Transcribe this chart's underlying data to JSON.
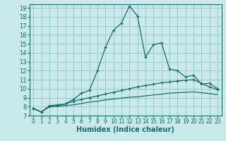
{
  "xlabel": "Humidex (Indice chaleur)",
  "background_color": "#c8eaea",
  "grid_color": "#8bbcbc",
  "line_color": "#1a6b6b",
  "xlim": [
    -0.5,
    23.5
  ],
  "ylim": [
    7,
    19.4
  ],
  "xticks": [
    0,
    1,
    2,
    3,
    4,
    5,
    6,
    7,
    8,
    9,
    10,
    11,
    12,
    13,
    14,
    15,
    16,
    17,
    18,
    19,
    20,
    21,
    22,
    23
  ],
  "yticks": [
    7,
    8,
    9,
    10,
    11,
    12,
    13,
    14,
    15,
    16,
    17,
    18,
    19
  ],
  "line1_x": [
    0,
    1,
    2,
    3,
    4,
    5,
    6,
    7,
    8,
    9,
    10,
    11,
    12,
    13,
    14,
    15,
    16,
    17,
    18,
    19,
    20,
    21,
    22,
    23
  ],
  "line1_y": [
    7.8,
    7.4,
    8.1,
    8.2,
    8.3,
    8.8,
    9.5,
    9.8,
    12.0,
    14.6,
    16.5,
    17.3,
    19.2,
    18.1,
    13.5,
    14.9,
    15.1,
    12.2,
    12.0,
    11.3,
    11.5,
    10.5,
    10.6,
    10.0
  ],
  "line2_x": [
    0,
    1,
    2,
    3,
    4,
    5,
    6,
    7,
    8,
    9,
    10,
    11,
    12,
    13,
    14,
    15,
    16,
    17,
    18,
    19,
    20,
    21,
    22,
    23
  ],
  "line2_y": [
    7.8,
    7.4,
    8.0,
    8.1,
    8.3,
    8.6,
    8.8,
    9.0,
    9.2,
    9.4,
    9.6,
    9.8,
    10.0,
    10.2,
    10.35,
    10.5,
    10.65,
    10.75,
    10.85,
    10.95,
    11.0,
    10.6,
    10.2,
    9.9
  ],
  "line3_x": [
    0,
    1,
    2,
    3,
    4,
    5,
    6,
    7,
    8,
    9,
    10,
    11,
    12,
    13,
    14,
    15,
    16,
    17,
    18,
    19,
    20,
    21,
    22,
    23
  ],
  "line3_y": [
    7.8,
    7.4,
    8.0,
    8.05,
    8.1,
    8.2,
    8.35,
    8.5,
    8.6,
    8.75,
    8.85,
    8.95,
    9.05,
    9.1,
    9.2,
    9.3,
    9.4,
    9.5,
    9.55,
    9.6,
    9.65,
    9.55,
    9.45,
    9.35
  ]
}
